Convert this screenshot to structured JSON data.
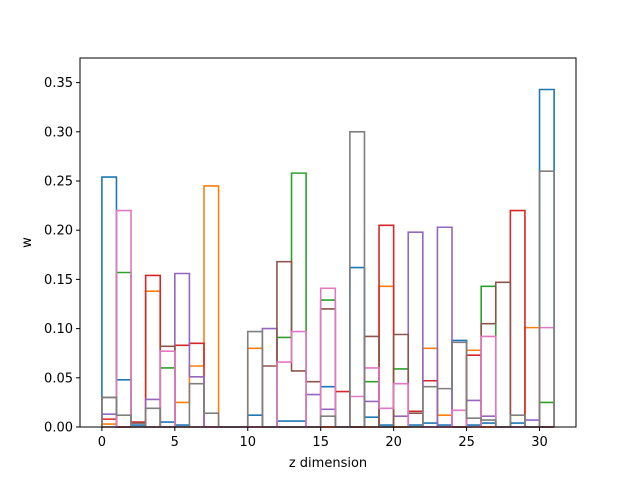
{
  "chart_data": {
    "type": "step-histogram",
    "xlabel": "z dimension",
    "ylabel": "w",
    "xlim": [
      -1.5,
      32.5
    ],
    "ylim": [
      0,
      0.375
    ],
    "xticks": [
      0,
      5,
      10,
      15,
      20,
      25,
      30
    ],
    "xtick_labels": [
      "0",
      "5",
      "10",
      "15",
      "20",
      "25",
      "30"
    ],
    "yticks": [
      0.0,
      0.05,
      0.1,
      0.15,
      0.2,
      0.25,
      0.3,
      0.35
    ],
    "ytick_labels": [
      "0.00",
      "0.05",
      "0.10",
      "0.15",
      "0.20",
      "0.25",
      "0.30",
      "0.35"
    ],
    "grid": false,
    "legend": "none",
    "bin_edges": [
      0,
      1,
      2,
      3,
      4,
      5,
      6,
      7,
      8,
      9,
      10,
      11,
      12,
      13,
      14,
      15,
      16,
      17,
      18,
      19,
      20,
      21,
      22,
      23,
      24,
      25,
      26,
      27,
      28,
      29,
      30,
      31
    ],
    "series": [
      {
        "color": "#1f77b4",
        "values": [
          0.254,
          0.048,
          0.002,
          0.0,
          0.005,
          0.002,
          0.0,
          0.0,
          0.0,
          0.0,
          0.012,
          0.0,
          0.006,
          0.006,
          0.0,
          0.041,
          0.0,
          0.162,
          0.01,
          0.002,
          0.0,
          0.002,
          0.004,
          0.002,
          0.088,
          0.002,
          0.004,
          0.0,
          0.004,
          0.0,
          0.343
        ]
      },
      {
        "color": "#ff7f0e",
        "values": [
          0.003,
          0.0,
          0.0,
          0.138,
          0.0,
          0.025,
          0.062,
          0.245,
          0.0,
          0.0,
          0.08,
          0.0,
          0.0,
          0.0,
          0.0,
          0.0,
          0.0,
          0.0,
          0.0,
          0.143,
          0.0,
          0.0,
          0.08,
          0.012,
          0.0,
          0.078,
          0.0,
          0.0,
          0.0,
          0.101,
          0.0
        ]
      },
      {
        "color": "#2ca02c",
        "values": [
          0.0,
          0.157,
          0.0,
          0.0,
          0.06,
          0.0,
          0.0,
          0.0,
          0.0,
          0.0,
          0.0,
          0.0,
          0.091,
          0.258,
          0.0,
          0.129,
          0.0,
          0.0,
          0.046,
          0.0,
          0.059,
          0.0,
          0.0,
          0.0,
          0.0,
          0.0,
          0.143,
          0.0,
          0.0,
          0.0,
          0.025
        ]
      },
      {
        "color": "#d62728",
        "values": [
          0.008,
          0.0,
          0.005,
          0.154,
          0.0,
          0.083,
          0.085,
          0.0,
          0.0,
          0.0,
          0.0,
          0.0,
          0.0,
          0.0,
          0.0,
          0.0,
          0.036,
          0.0,
          0.0,
          0.205,
          0.0,
          0.016,
          0.047,
          0.0,
          0.0,
          0.073,
          0.0,
          0.0,
          0.22,
          0.0,
          0.0
        ]
      },
      {
        "color": "#9467bd",
        "values": [
          0.013,
          0.0,
          0.0,
          0.028,
          0.0,
          0.156,
          0.051,
          0.0,
          0.0,
          0.0,
          0.0,
          0.1,
          0.0,
          0.0,
          0.033,
          0.018,
          0.0,
          0.0,
          0.026,
          0.0,
          0.011,
          0.198,
          0.0,
          0.203,
          0.0,
          0.027,
          0.011,
          0.0,
          0.0,
          0.007,
          0.0
        ]
      },
      {
        "color": "#8c564b",
        "values": [
          0.03,
          0.0,
          0.004,
          0.0,
          0.082,
          0.0,
          0.0,
          0.0,
          0.0,
          0.0,
          0.0,
          0.062,
          0.168,
          0.057,
          0.046,
          0.12,
          0.0,
          0.0,
          0.092,
          0.0,
          0.094,
          0.014,
          0.0,
          0.0,
          0.0,
          0.0,
          0.105,
          0.147,
          0.0,
          0.0,
          0.0
        ]
      },
      {
        "color": "#e377c2",
        "values": [
          0.0,
          0.22,
          0.0,
          0.0,
          0.077,
          0.0,
          0.0,
          0.0,
          0.0,
          0.0,
          0.0,
          0.0,
          0.066,
          0.097,
          0.0,
          0.141,
          0.0,
          0.031,
          0.06,
          0.019,
          0.044,
          0.0,
          0.0,
          0.0,
          0.017,
          0.0,
          0.092,
          0.0,
          0.0,
          0.0,
          0.101
        ]
      },
      {
        "color": "#7f7f7f",
        "values": [
          0.03,
          0.012,
          0.0,
          0.019,
          0.0,
          0.0,
          0.044,
          0.014,
          0.0,
          0.0,
          0.097,
          0.0,
          0.0,
          0.0,
          0.0,
          0.011,
          0.0,
          0.3,
          0.0,
          0.0,
          0.0,
          0.0,
          0.041,
          0.039,
          0.086,
          0.009,
          0.007,
          0.0,
          0.012,
          0.0,
          0.26
        ]
      }
    ]
  }
}
